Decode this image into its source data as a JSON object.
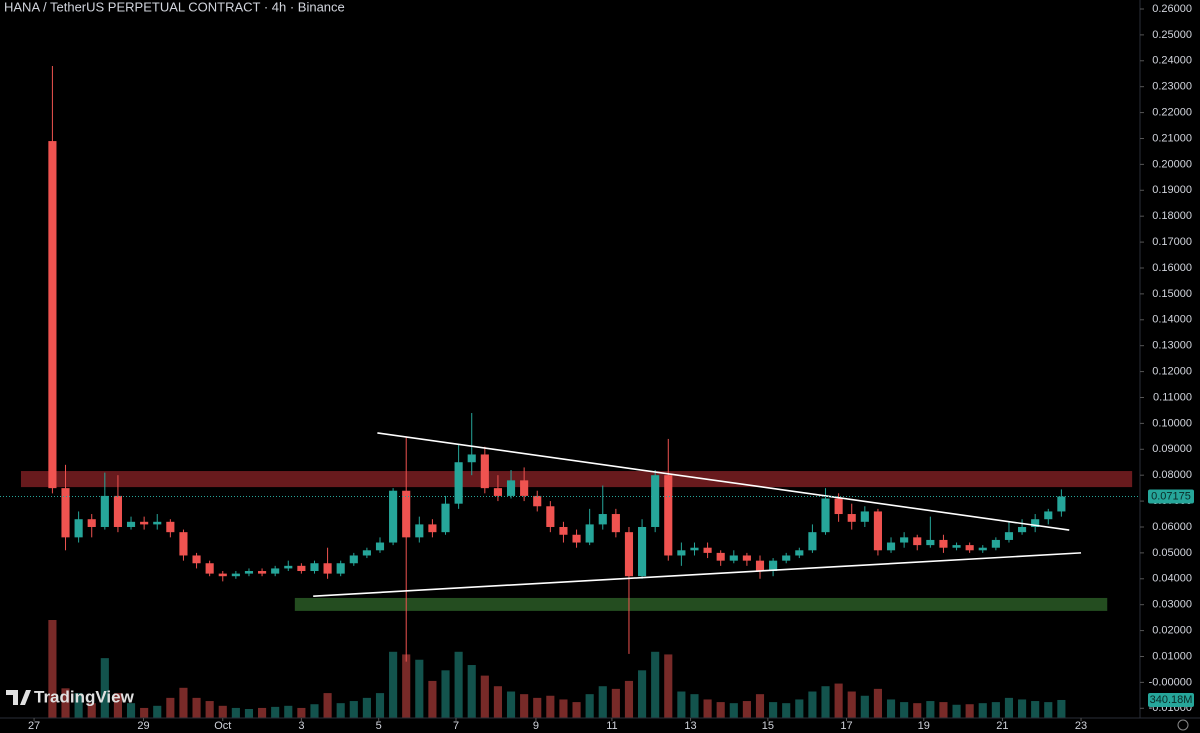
{
  "chart_data": {
    "type": "candlestick",
    "title": "HANA / TetherUS PERPETUAL CONTRACT · 4h · Binance",
    "watermark": "TradingView",
    "up_color": "#26a69a",
    "down_color": "#ef5350",
    "open": [
      0.209,
      0.075,
      0.056,
      0.063,
      0.06,
      0.072,
      0.06,
      0.062,
      0.061,
      0.062,
      0.058,
      0.049,
      0.046,
      0.042,
      0.041,
      0.042,
      0.043,
      0.042,
      0.044,
      0.045,
      0.043,
      0.046,
      0.042,
      0.046,
      0.049,
      0.051,
      0.054,
      0.074,
      0.056,
      0.061,
      0.058,
      0.069,
      0.085,
      0.088,
      0.075,
      0.072,
      0.078,
      0.072,
      0.068,
      0.06,
      0.057,
      0.054,
      0.061,
      0.065,
      0.058,
      0.041,
      0.06,
      0.08,
      0.049,
      0.051,
      0.052,
      0.05,
      0.047,
      0.049,
      0.047,
      0.043,
      0.047,
      0.049,
      0.051,
      0.058,
      0.071,
      0.065,
      0.062,
      0.066,
      0.051,
      0.054,
      0.056,
      0.053,
      0.055,
      0.052,
      0.053,
      0.051,
      0.052,
      0.055,
      0.058,
      0.06,
      0.063,
      0.066
    ],
    "high": [
      0.238,
      0.084,
      0.066,
      0.065,
      0.081,
      0.08,
      0.064,
      0.064,
      0.065,
      0.063,
      0.059,
      0.05,
      0.047,
      0.043,
      0.043,
      0.044,
      0.044,
      0.045,
      0.047,
      0.046,
      0.047,
      0.052,
      0.047,
      0.05,
      0.052,
      0.056,
      0.075,
      0.095,
      0.064,
      0.063,
      0.072,
      0.092,
      0.104,
      0.091,
      0.08,
      0.082,
      0.083,
      0.074,
      0.07,
      0.062,
      0.059,
      0.067,
      0.076,
      0.067,
      0.06,
      0.063,
      0.082,
      0.094,
      0.054,
      0.054,
      0.054,
      0.051,
      0.051,
      0.05,
      0.049,
      0.048,
      0.05,
      0.052,
      0.061,
      0.075,
      0.073,
      0.069,
      0.068,
      0.067,
      0.056,
      0.058,
      0.057,
      0.064,
      0.057,
      0.054,
      0.054,
      0.053,
      0.056,
      0.062,
      0.063,
      0.065,
      0.067,
      0.0745
    ],
    "low": [
      0.073,
      0.051,
      0.054,
      0.056,
      0.059,
      0.058,
      0.059,
      0.059,
      0.059,
      0.056,
      0.047,
      0.044,
      0.041,
      0.039,
      0.04,
      0.041,
      0.041,
      0.041,
      0.043,
      0.042,
      0.042,
      0.04,
      0.041,
      0.045,
      0.048,
      0.05,
      0.053,
      0.008,
      0.054,
      0.056,
      0.057,
      0.067,
      0.08,
      0.073,
      0.07,
      0.071,
      0.07,
      0.066,
      0.058,
      0.054,
      0.052,
      0.053,
      0.059,
      0.056,
      0.011,
      0.04,
      0.058,
      0.047,
      0.045,
      0.049,
      0.048,
      0.045,
      0.046,
      0.045,
      0.04,
      0.041,
      0.046,
      0.048,
      0.05,
      0.057,
      0.062,
      0.059,
      0.06,
      0.049,
      0.05,
      0.052,
      0.051,
      0.052,
      0.05,
      0.051,
      0.05,
      0.05,
      0.051,
      0.054,
      0.057,
      0.058,
      0.061,
      0.064
    ],
    "close": [
      0.075,
      0.056,
      0.063,
      0.06,
      0.072,
      0.06,
      0.062,
      0.061,
      0.062,
      0.058,
      0.049,
      0.046,
      0.042,
      0.041,
      0.042,
      0.043,
      0.042,
      0.044,
      0.045,
      0.043,
      0.046,
      0.042,
      0.046,
      0.049,
      0.051,
      0.054,
      0.074,
      0.056,
      0.061,
      0.058,
      0.069,
      0.085,
      0.088,
      0.075,
      0.072,
      0.078,
      0.072,
      0.068,
      0.06,
      0.057,
      0.054,
      0.061,
      0.065,
      0.058,
      0.041,
      0.06,
      0.08,
      0.049,
      0.051,
      0.052,
      0.05,
      0.047,
      0.049,
      0.047,
      0.043,
      0.047,
      0.049,
      0.051,
      0.058,
      0.071,
      0.065,
      0.062,
      0.066,
      0.051,
      0.054,
      0.056,
      0.053,
      0.055,
      0.052,
      0.053,
      0.051,
      0.052,
      0.055,
      0.058,
      0.06,
      0.063,
      0.066,
      0.07175
    ],
    "volume": [
      1850,
      560,
      470,
      280,
      1130,
      470,
      280,
      190,
      230,
      380,
      570,
      380,
      320,
      230,
      190,
      170,
      190,
      210,
      230,
      190,
      260,
      470,
      280,
      320,
      380,
      470,
      1250,
      1200,
      1100,
      700,
      900,
      1250,
      1000,
      800,
      600,
      500,
      450,
      380,
      420,
      350,
      300,
      450,
      600,
      550,
      700,
      900,
      1250,
      1200,
      500,
      450,
      350,
      300,
      280,
      320,
      450,
      300,
      280,
      350,
      500,
      600,
      650,
      500,
      420,
      550,
      350,
      300,
      280,
      320,
      300,
      250,
      260,
      280,
      300,
      380,
      350,
      320,
      300,
      340.18
    ],
    "volume_tag": "340.18M",
    "xlim": [
      -4,
      83
    ],
    "ylim": [
      -0.01375,
      0.26347
    ],
    "xticks": [
      {
        "value": -1.4,
        "label": "27"
      },
      {
        "value": 6.95,
        "label": "29"
      },
      {
        "value": 13,
        "label": "Oct"
      },
      {
        "value": 19,
        "label": "3"
      },
      {
        "value": 24.9,
        "label": "5"
      },
      {
        "value": 30.8,
        "label": "7"
      },
      {
        "value": 36.9,
        "label": "9"
      },
      {
        "value": 42.7,
        "label": "11"
      },
      {
        "value": 48.7,
        "label": "13"
      },
      {
        "value": 54.6,
        "label": "15"
      },
      {
        "value": 60.6,
        "label": "17"
      },
      {
        "value": 66.5,
        "label": "19"
      },
      {
        "value": 72.5,
        "label": "21"
      },
      {
        "value": 78.5,
        "label": "23"
      }
    ],
    "yticks": [
      {
        "value": 0.26,
        "label": "0.26000"
      },
      {
        "value": 0.25,
        "label": "0.25000"
      },
      {
        "value": 0.24,
        "label": "0.24000"
      },
      {
        "value": 0.23,
        "label": "0.23000"
      },
      {
        "value": 0.22,
        "label": "0.22000"
      },
      {
        "value": 0.21,
        "label": "0.21000"
      },
      {
        "value": 0.2,
        "label": "0.20000"
      },
      {
        "value": 0.19,
        "label": "0.19000"
      },
      {
        "value": 0.18,
        "label": "0.18000"
      },
      {
        "value": 0.17,
        "label": "0.17000"
      },
      {
        "value": 0.16,
        "label": "0.16000"
      },
      {
        "value": 0.15,
        "label": "0.15000"
      },
      {
        "value": 0.14,
        "label": "0.14000"
      },
      {
        "value": 0.13,
        "label": "0.13000"
      },
      {
        "value": 0.12,
        "label": "0.12000"
      },
      {
        "value": 0.11,
        "label": "0.11000"
      },
      {
        "value": 0.1,
        "label": "0.10000"
      },
      {
        "value": 0.09,
        "label": "0.09000"
      },
      {
        "value": 0.08,
        "label": "0.08000"
      },
      {
        "value": 0.07,
        "label": "0.07000"
      },
      {
        "value": 0.06,
        "label": "0.06000"
      },
      {
        "value": 0.05,
        "label": "0.05000"
      },
      {
        "value": 0.04,
        "label": "0.04000"
      },
      {
        "value": 0.03,
        "label": "0.03000"
      },
      {
        "value": 0.02,
        "label": "0.02000"
      },
      {
        "value": 0.01,
        "label": "0.01000"
      },
      {
        "value": 0,
        "label": "-0.00000"
      },
      {
        "value": -0.01,
        "label": "-0.01000"
      }
    ],
    "zones": [
      {
        "low": 0.0754,
        "high": 0.0816,
        "from": -2.4,
        "to": 82.4,
        "color": "#7a1f22"
      },
      {
        "low": 0.0276,
        "high": 0.0326,
        "from": 18.5,
        "to": 80.5,
        "color": "#2a5a26"
      }
    ],
    "trendlines": [
      {
        "from": [
          24.8,
          0.0963
        ],
        "to": [
          77.6,
          0.0588
        ],
        "color": "#ffffff"
      },
      {
        "from": [
          19.9,
          0.0333
        ],
        "to": [
          78.5,
          0.05
        ],
        "color": "#ffffff"
      }
    ]
  }
}
